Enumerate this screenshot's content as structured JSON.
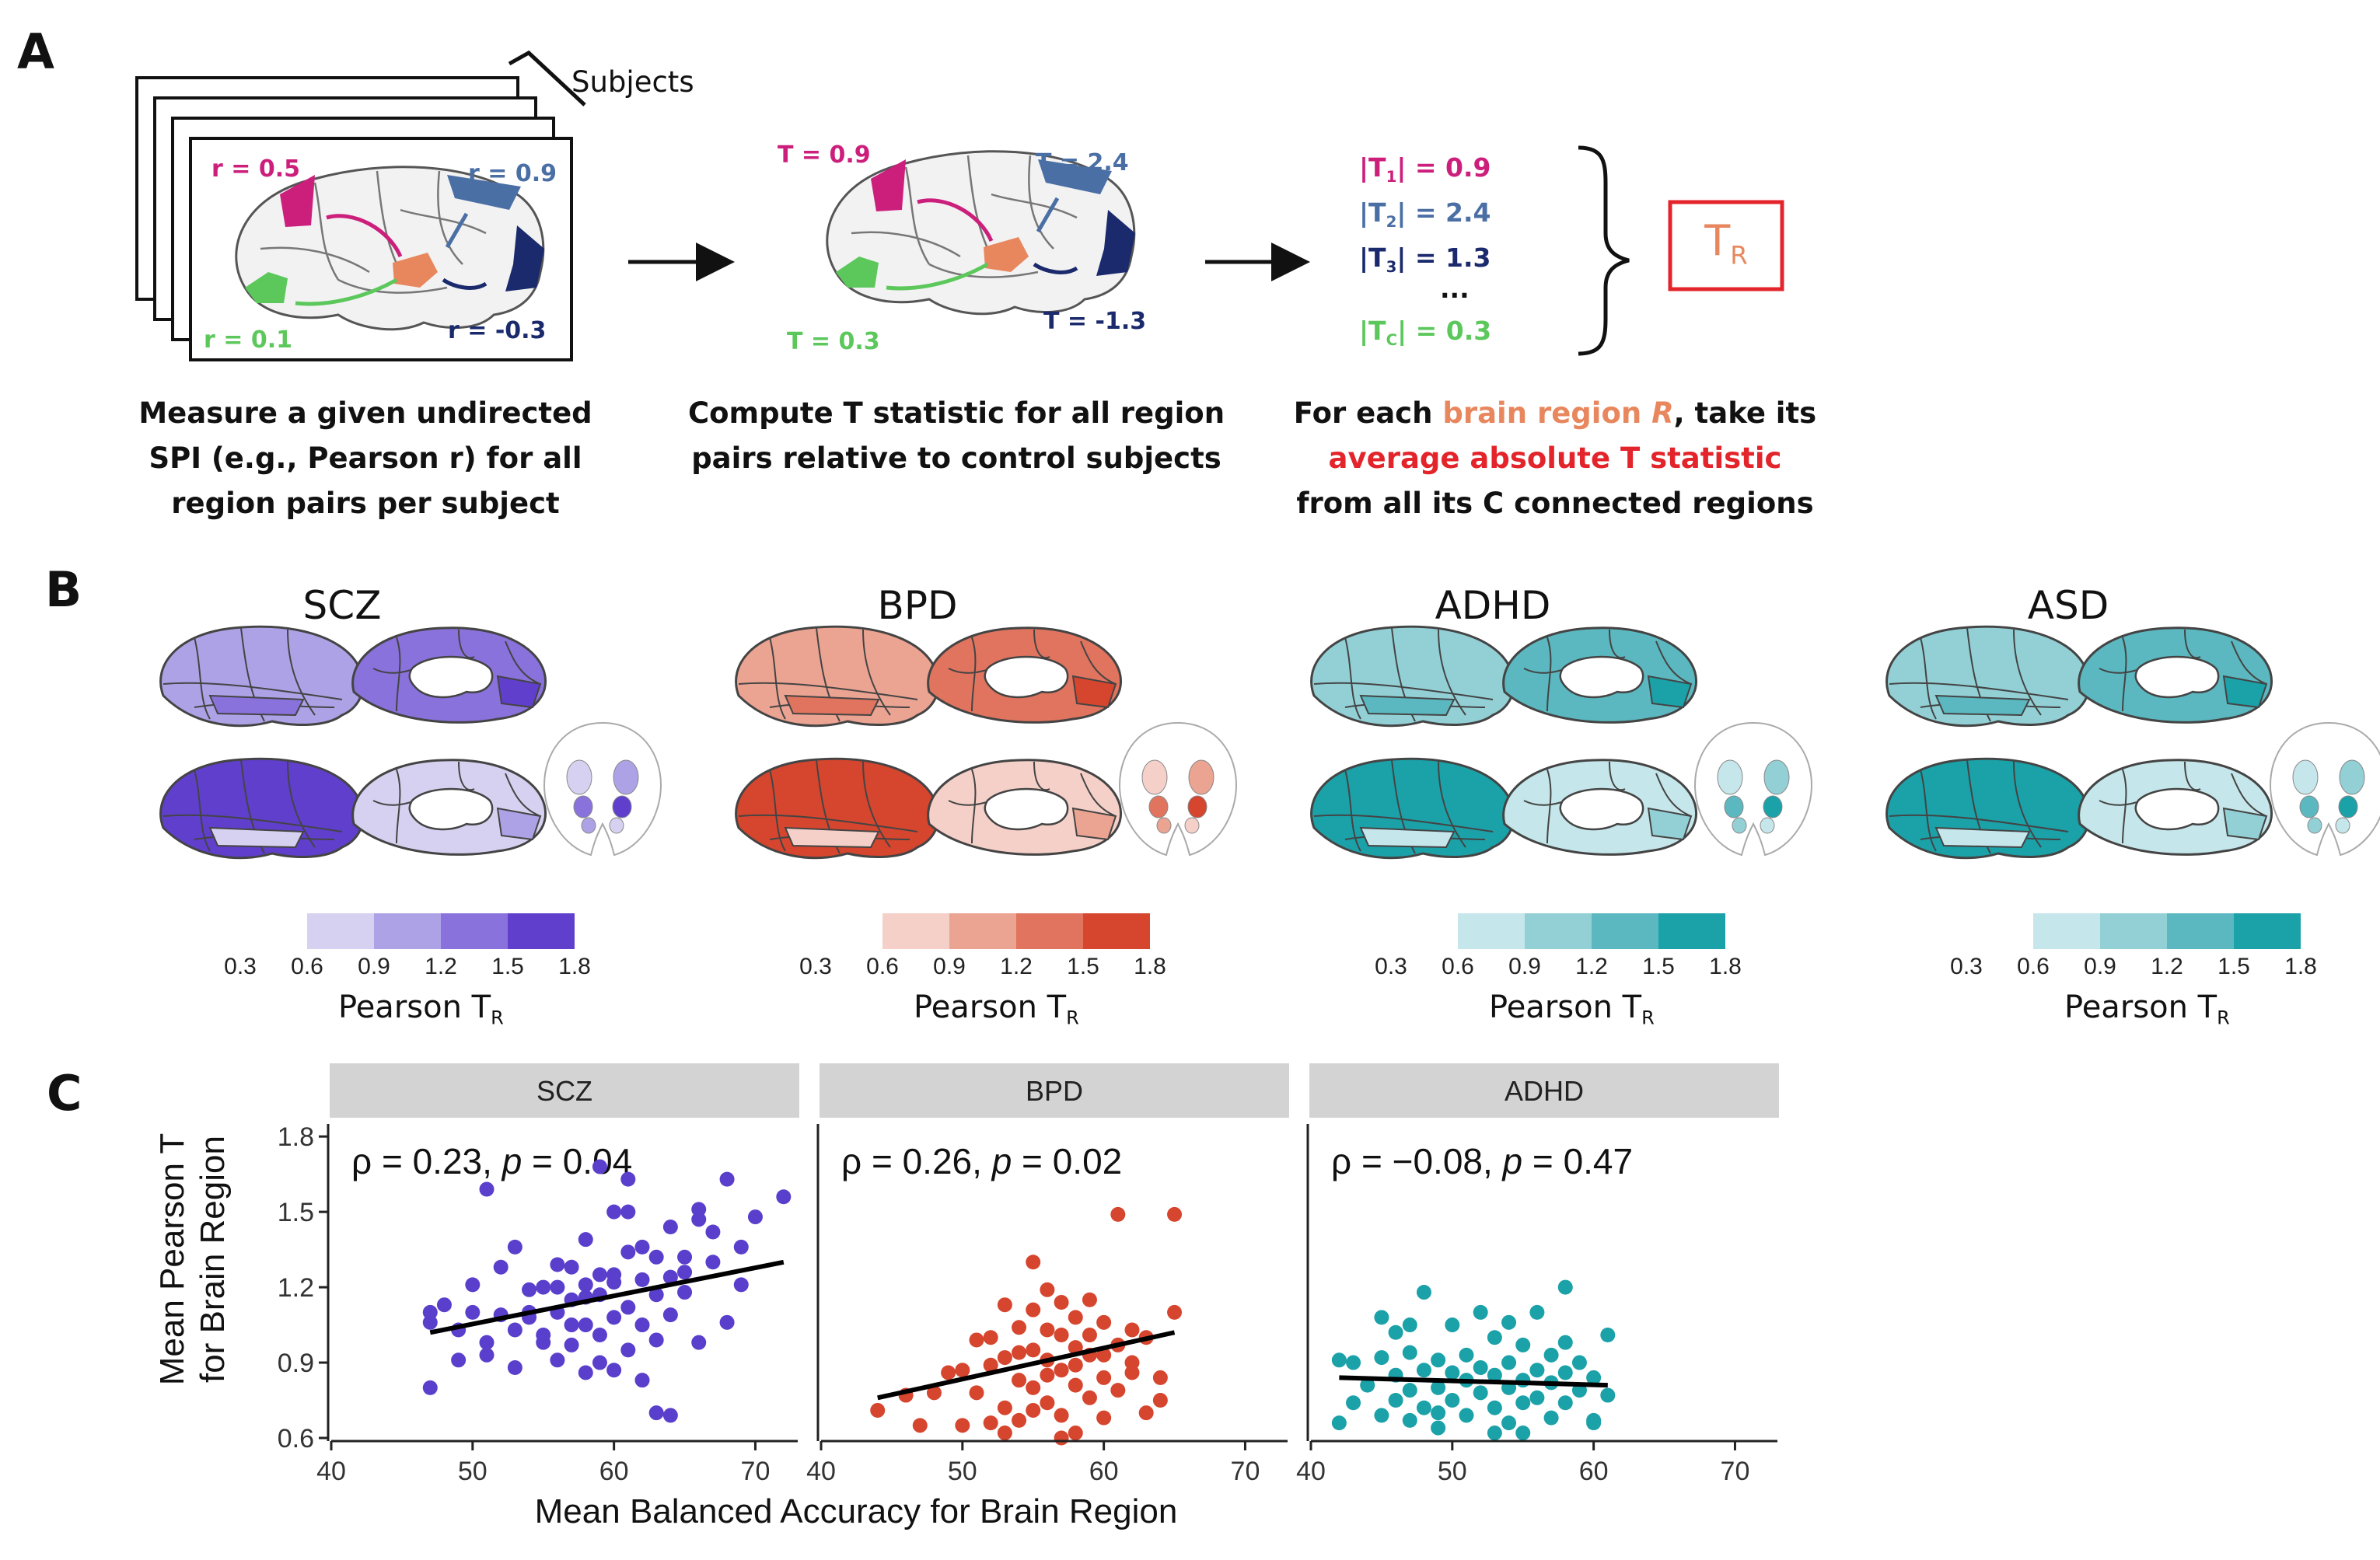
{
  "panel_labels": {
    "a": "A",
    "b": "B",
    "c": "C"
  },
  "panel_a": {
    "subjects_label": "Subjects",
    "subject_r": [
      {
        "text": "r = 0.5",
        "color": "#cc1f7c"
      },
      {
        "text": "r = 0.9",
        "color": "#4a6fa5"
      },
      {
        "text": "r = 0.1",
        "color": "#5cc85c"
      },
      {
        "text": "r = -0.3",
        "color": "#1a2a6c"
      }
    ],
    "t_values": [
      {
        "text": "T = 0.9",
        "color": "#cc1f7c"
      },
      {
        "text": "T = 2.4",
        "color": "#4a6fa5"
      },
      {
        "text": "T = 0.3",
        "color": "#5cc85c"
      },
      {
        "text": "T = -1.3",
        "color": "#1a2a6c"
      }
    ],
    "abs_t_list": [
      {
        "sub": "1",
        "value": "0.9",
        "color": "#cc1f7c"
      },
      {
        "sub": "2",
        "value": "2.4",
        "color": "#4a6fa5"
      },
      {
        "sub": "3",
        "value": "1.3",
        "color": "#1a2a6c"
      },
      {
        "sub": "C",
        "value": "0.3",
        "color": "#5cc85c"
      }
    ],
    "ellipsis": "...",
    "tr_box": {
      "main": "T",
      "sub": "R",
      "text_color": "#e8875e",
      "border_color": "#e3242b"
    },
    "caption1": [
      "Measure a given undirected",
      "SPI (e.g., Pearson r) for all",
      "region pairs per subject"
    ],
    "caption2": [
      "Compute T statistic for all region",
      "pairs relative to control subjects"
    ],
    "caption3": {
      "line1_pre": "For each ",
      "line1_hl": "brain region ",
      "line1_hl_italic": "R",
      "line1_post": ", take its",
      "line2": "average absolute T statistic",
      "line3": "from all its C connected regions",
      "hl_color": "#e8875e",
      "line2_color": "#e3242b"
    }
  },
  "panel_b": {
    "disorders": [
      {
        "name": "SCZ",
        "colors": [
          "#d6d1f0",
          "#ada2e6",
          "#8a72dc",
          "#5f3fcc"
        ]
      },
      {
        "name": "BPD",
        "colors": [
          "#f5d0c8",
          "#eba392",
          "#e0745f",
          "#d6452e"
        ]
      },
      {
        "name": "ADHD",
        "colors": [
          "#c5e6ea",
          "#92d0d6",
          "#5bb8c0",
          "#1ba1a8"
        ]
      },
      {
        "name": "ASD",
        "colors": [
          "#c5e6ea",
          "#92d0d6",
          "#5bb8c0",
          "#1ba1a8"
        ]
      }
    ],
    "colorbar_ticks": [
      "0.3",
      "0.6",
      "0.9",
      "1.2",
      "1.5",
      "1.8"
    ],
    "colorbar_label_main": "Pearson T",
    "colorbar_label_sub": "R"
  },
  "panel_c": {
    "y_axis_label_lines": [
      "Mean Pearson T",
      "for Brain Region"
    ],
    "x_axis_label": "Mean Balanced Accuracy for Brain Region",
    "x_ticks": [
      "40",
      "50",
      "60",
      "70"
    ],
    "y_ticks": [
      "0.6",
      "0.9",
      "1.2",
      "1.5",
      "1.8"
    ]
  },
  "chart_data": [
    {
      "type": "scatter",
      "title": "SCZ",
      "annotation": {
        "rho": "ρ = 0.23, ",
        "p_label": "p",
        "p_value": " = 0.04"
      },
      "xlim": [
        40,
        73
      ],
      "ylim": [
        0.6,
        1.85
      ],
      "color": "#5a3fcc",
      "trend": [
        [
          47,
          1.02
        ],
        [
          72,
          1.3
        ]
      ],
      "points": [
        [
          47,
          0.8
        ],
        [
          47,
          1.06
        ],
        [
          47,
          1.1
        ],
        [
          48,
          1.13
        ],
        [
          49,
          0.91
        ],
        [
          49,
          1.03
        ],
        [
          50,
          1.21
        ],
        [
          50,
          1.1
        ],
        [
          51,
          1.59
        ],
        [
          51,
          0.98
        ],
        [
          52,
          1.09
        ],
        [
          52,
          1.28
        ],
        [
          53,
          1.03
        ],
        [
          53,
          0.88
        ],
        [
          54,
          1.19
        ],
        [
          54,
          1.08
        ],
        [
          55,
          1.01
        ],
        [
          55,
          1.2
        ],
        [
          55,
          0.98
        ],
        [
          56,
          1.29
        ],
        [
          56,
          1.1
        ],
        [
          56,
          0.91
        ],
        [
          57,
          1.28
        ],
        [
          57,
          0.97
        ],
        [
          57,
          1.15
        ],
        [
          58,
          1.39
        ],
        [
          58,
          0.86
        ],
        [
          58,
          1.05
        ],
        [
          58,
          1.21
        ],
        [
          59,
          1.68
        ],
        [
          59,
          1.17
        ],
        [
          59,
          0.9
        ],
        [
          59,
          1.01
        ],
        [
          60,
          1.25
        ],
        [
          60,
          1.5
        ],
        [
          60,
          0.87
        ],
        [
          60,
          1.08
        ],
        [
          61,
          1.63
        ],
        [
          61,
          1.34
        ],
        [
          61,
          1.12
        ],
        [
          61,
          0.95
        ],
        [
          61,
          1.5
        ],
        [
          62,
          1.23
        ],
        [
          62,
          1.05
        ],
        [
          62,
          0.83
        ],
        [
          63,
          1.32
        ],
        [
          63,
          1.17
        ],
        [
          63,
          0.99
        ],
        [
          63,
          0.7
        ],
        [
          64,
          1.24
        ],
        [
          64,
          1.44
        ],
        [
          64,
          0.69
        ],
        [
          64,
          1.09
        ],
        [
          65,
          1.32
        ],
        [
          65,
          1.18
        ],
        [
          66,
          1.47
        ],
        [
          66,
          1.51
        ],
        [
          66,
          0.98
        ],
        [
          67,
          1.3
        ],
        [
          67,
          1.42
        ],
        [
          68,
          1.63
        ],
        [
          68,
          1.06
        ],
        [
          69,
          1.36
        ],
        [
          69,
          1.21
        ],
        [
          70,
          1.48
        ],
        [
          72,
          1.56
        ],
        [
          56,
          1.2
        ],
        [
          54,
          1.1
        ],
        [
          58,
          1.16
        ],
        [
          60,
          1.22
        ],
        [
          62,
          1.36
        ],
        [
          65,
          1.26
        ],
        [
          53,
          1.36
        ],
        [
          51,
          0.93
        ],
        [
          57,
          1.05
        ],
        [
          59,
          1.25
        ]
      ]
    },
    {
      "type": "scatter",
      "title": "BPD",
      "annotation": {
        "rho": "ρ = 0.26, ",
        "p_label": "p",
        "p_value": " = 0.02"
      },
      "xlim": [
        40,
        73
      ],
      "ylim": [
        0.6,
        1.85
      ],
      "color": "#d6452e",
      "trend": [
        [
          44,
          0.76
        ],
        [
          65,
          1.02
        ]
      ],
      "points": [
        [
          44,
          0.71
        ],
        [
          46,
          0.77
        ],
        [
          47,
          0.65
        ],
        [
          48,
          0.78
        ],
        [
          49,
          0.86
        ],
        [
          50,
          0.65
        ],
        [
          50,
          0.87
        ],
        [
          51,
          0.99
        ],
        [
          51,
          0.78
        ],
        [
          52,
          0.89
        ],
        [
          52,
          0.66
        ],
        [
          53,
          0.92
        ],
        [
          53,
          1.13
        ],
        [
          53,
          0.72
        ],
        [
          54,
          1.04
        ],
        [
          54,
          0.83
        ],
        [
          54,
          0.67
        ],
        [
          55,
          1.11
        ],
        [
          55,
          0.95
        ],
        [
          55,
          0.8
        ],
        [
          55,
          1.3
        ],
        [
          56,
          1.19
        ],
        [
          56,
          0.91
        ],
        [
          56,
          0.74
        ],
        [
          56,
          1.03
        ],
        [
          57,
          1.14
        ],
        [
          57,
          0.87
        ],
        [
          57,
          0.69
        ],
        [
          57,
          1.01
        ],
        [
          58,
          1.08
        ],
        [
          58,
          0.96
        ],
        [
          58,
          0.81
        ],
        [
          58,
          0.62
        ],
        [
          59,
          1.15
        ],
        [
          59,
          0.93
        ],
        [
          59,
          0.76
        ],
        [
          59,
          1.01
        ],
        [
          60,
          1.06
        ],
        [
          60,
          0.84
        ],
        [
          60,
          0.68
        ],
        [
          61,
          1.49
        ],
        [
          61,
          0.97
        ],
        [
          61,
          0.79
        ],
        [
          62,
          1.03
        ],
        [
          62,
          0.86
        ],
        [
          63,
          1.0
        ],
        [
          63,
          0.7
        ],
        [
          64,
          0.84
        ],
        [
          64,
          0.75
        ],
        [
          65,
          1.49
        ],
        [
          65,
          1.1
        ],
        [
          52,
          1.0
        ],
        [
          54,
          0.94
        ],
        [
          56,
          0.85
        ],
        [
          58,
          0.89
        ],
        [
          60,
          0.93
        ],
        [
          62,
          0.9
        ],
        [
          55,
          0.71
        ],
        [
          57,
          0.6
        ],
        [
          53,
          0.62
        ]
      ]
    },
    {
      "type": "scatter",
      "title": "ADHD",
      "annotation": {
        "rho": "ρ = −0.08, ",
        "p_label": "p",
        "p_value": " = 0.47"
      },
      "xlim": [
        40,
        73
      ],
      "ylim": [
        0.6,
        1.85
      ],
      "color": "#1ba1a8",
      "trend": [
        [
          42,
          0.84
        ],
        [
          61,
          0.81
        ]
      ],
      "points": [
        [
          42,
          0.91
        ],
        [
          42,
          0.66
        ],
        [
          43,
          0.9
        ],
        [
          43,
          0.74
        ],
        [
          44,
          0.81
        ],
        [
          45,
          0.92
        ],
        [
          45,
          1.08
        ],
        [
          45,
          0.69
        ],
        [
          46,
          0.85
        ],
        [
          46,
          0.75
        ],
        [
          46,
          1.02
        ],
        [
          47,
          0.94
        ],
        [
          47,
          0.79
        ],
        [
          47,
          0.67
        ],
        [
          48,
          1.18
        ],
        [
          48,
          0.87
        ],
        [
          48,
          0.72
        ],
        [
          49,
          0.91
        ],
        [
          49,
          0.8
        ],
        [
          49,
          0.64
        ],
        [
          50,
          1.05
        ],
        [
          50,
          0.86
        ],
        [
          50,
          0.75
        ],
        [
          51,
          0.93
        ],
        [
          51,
          0.83
        ],
        [
          51,
          0.69
        ],
        [
          52,
          1.1
        ],
        [
          52,
          0.88
        ],
        [
          52,
          0.78
        ],
        [
          53,
          1.0
        ],
        [
          53,
          0.85
        ],
        [
          53,
          0.72
        ],
        [
          54,
          1.06
        ],
        [
          54,
          0.9
        ],
        [
          54,
          0.8
        ],
        [
          54,
          0.66
        ],
        [
          55,
          0.97
        ],
        [
          55,
          0.83
        ],
        [
          55,
          0.74
        ],
        [
          56,
          1.1
        ],
        [
          56,
          0.87
        ],
        [
          56,
          0.76
        ],
        [
          57,
          0.93
        ],
        [
          57,
          0.82
        ],
        [
          57,
          0.68
        ],
        [
          58,
          1.2
        ],
        [
          58,
          0.98
        ],
        [
          58,
          0.86
        ],
        [
          58,
          0.74
        ],
        [
          59,
          0.9
        ],
        [
          59,
          0.79
        ],
        [
          60,
          0.84
        ],
        [
          60,
          0.67
        ],
        [
          61,
          1.01
        ],
        [
          61,
          0.77
        ],
        [
          60,
          0.66
        ],
        [
          53,
          0.62
        ],
        [
          49,
          0.7
        ],
        [
          55,
          0.62
        ],
        [
          47,
          1.05
        ]
      ]
    }
  ]
}
